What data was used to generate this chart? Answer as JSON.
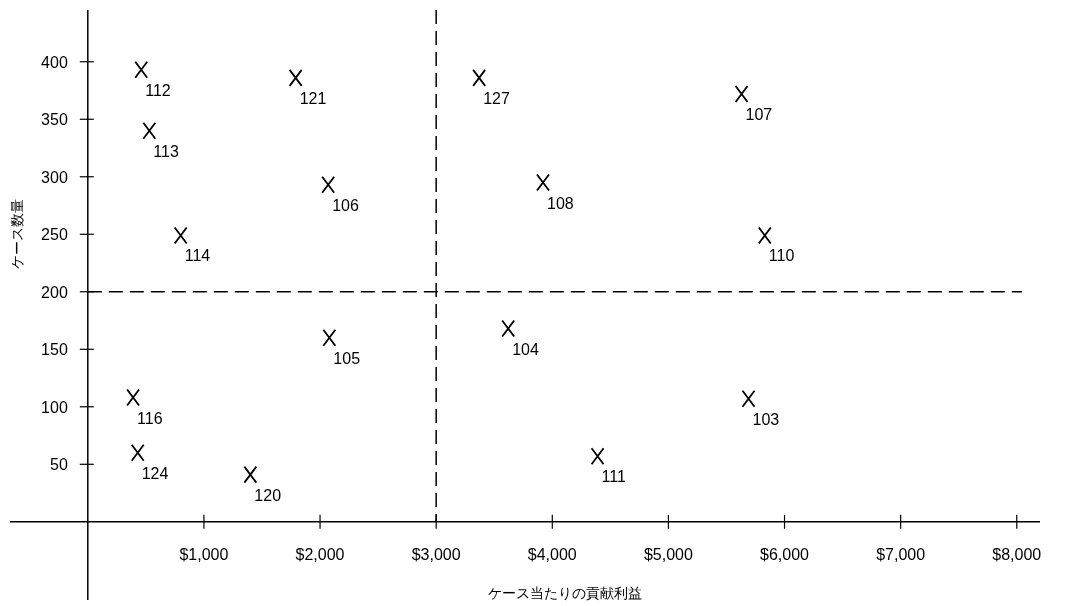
{
  "chart_data": {
    "type": "scatter",
    "xlabel": "ケース当たりの貢献利益",
    "ylabel": "ケース数量",
    "series": [
      {
        "color": "#000000",
        "x": [
          460,
          530,
          800,
          1790,
          2070,
          3370,
          5630,
          3920,
          5830,
          2080,
          390,
          430,
          1400,
          3620,
          5690,
          4390
        ],
        "values": [
          393,
          340,
          249,
          386,
          293,
          386,
          372,
          295,
          249,
          160,
          108,
          60,
          41,
          168,
          107,
          57
        ]
      }
    ],
    "annotations": [
      {
        "text": "112",
        "x": 460,
        "y": 393
      },
      {
        "text": "113",
        "x": 530,
        "y": 340
      },
      {
        "text": "114",
        "x": 800,
        "y": 249
      },
      {
        "text": "121",
        "x": 1790,
        "y": 386
      },
      {
        "text": "106",
        "x": 2070,
        "y": 293
      },
      {
        "text": "127",
        "x": 3370,
        "y": 386
      },
      {
        "text": "107",
        "x": 5630,
        "y": 372
      },
      {
        "text": "108",
        "x": 3920,
        "y": 295
      },
      {
        "text": "110",
        "x": 5830,
        "y": 249
      },
      {
        "text": "105",
        "x": 2080,
        "y": 160
      },
      {
        "text": "116",
        "x": 390,
        "y": 108
      },
      {
        "text": "124",
        "x": 430,
        "y": 60
      },
      {
        "text": "120",
        "x": 1400,
        "y": 41
      },
      {
        "text": "104",
        "x": 3620,
        "y": 168
      },
      {
        "text": "103",
        "x": 5690,
        "y": 107
      },
      {
        "text": "111",
        "x": 4390,
        "y": 57
      }
    ],
    "xlim": [
      -670,
      8200
    ],
    "ylim": [
      -68,
      445
    ],
    "xticks": [
      {
        "value": 1000,
        "label": "$1,000"
      },
      {
        "value": 2000,
        "label": "$2,000"
      },
      {
        "value": 3000,
        "label": "$3,000"
      },
      {
        "value": 4000,
        "label": "$4,000"
      },
      {
        "value": 5000,
        "label": "$5,000"
      },
      {
        "value": 6000,
        "label": "$6,000"
      },
      {
        "value": 7000,
        "label": "$7,000"
      },
      {
        "value": 8000,
        "label": "$8,000"
      }
    ],
    "yticks": [
      50,
      100,
      150,
      200,
      250,
      300,
      350,
      400
    ],
    "ref_lines": [
      {
        "axis": "x",
        "value": 3000,
        "line_style": "dashed"
      },
      {
        "axis": "y",
        "value": 200,
        "line_style": "dashed"
      }
    ],
    "marker": "cross",
    "grid": false
  }
}
